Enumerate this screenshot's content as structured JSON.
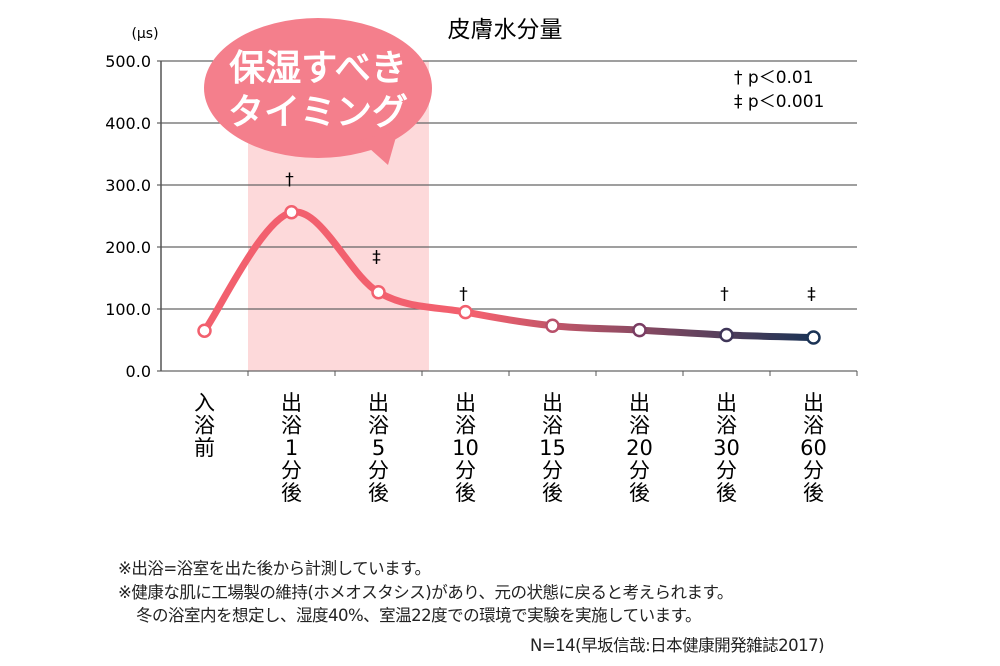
{
  "chart_data": {
    "type": "line",
    "title": "皮膚水分量",
    "ylabel": "(μs)",
    "ylim": [
      0,
      500
    ],
    "yticks": [
      "0.0",
      "100.0",
      "200.0",
      "300.0",
      "400.0",
      "500.0"
    ],
    "categories": [
      "入浴前",
      "出浴1分後",
      "出浴5分後",
      "出浴10分後",
      "出浴15分後",
      "出浴20分後",
      "出浴30分後",
      "出浴60分後"
    ],
    "category_labels": [
      [
        "入",
        "浴",
        "前"
      ],
      [
        "出",
        "浴",
        "1",
        "分",
        "後"
      ],
      [
        "出",
        "浴",
        "5",
        "分",
        "後"
      ],
      [
        "出",
        "浴",
        "10",
        "分",
        "後"
      ],
      [
        "出",
        "浴",
        "15",
        "分",
        "後"
      ],
      [
        "出",
        "浴",
        "20",
        "分",
        "後"
      ],
      [
        "出",
        "浴",
        "30",
        "分",
        "後"
      ],
      [
        "出",
        "浴",
        "60",
        "分",
        "後"
      ]
    ],
    "values": [
      65,
      256,
      127,
      95,
      73,
      66,
      58,
      54
    ],
    "significance": [
      "",
      "†",
      "‡",
      "†",
      "",
      "",
      "†",
      "‡"
    ],
    "legend": [
      "† p＜0.01",
      "‡ p＜0.001"
    ],
    "legend_placement": "top-right",
    "highlight_range": [
      "出浴1分後",
      "出浴10分後"
    ],
    "callout": [
      "保湿すべき",
      "タイミング"
    ],
    "grid": true,
    "colors": {
      "start": "#f2606e",
      "end": "#1b3355",
      "band": "#fdd9da",
      "callout": "#f47f8c"
    }
  },
  "notes": [
    "※出浴=浴室を出た後から計測しています。",
    "※健康な肌に工場製の維持(ホメオスタシス)があり、元の状態に戻ると考えられます。",
    "冬の浴室内を想定し、湿度40%、室温22度での環境で実験を実施しています。"
  ],
  "source": "N=14(早坂信哉:日本健康開発雑誌2017)"
}
